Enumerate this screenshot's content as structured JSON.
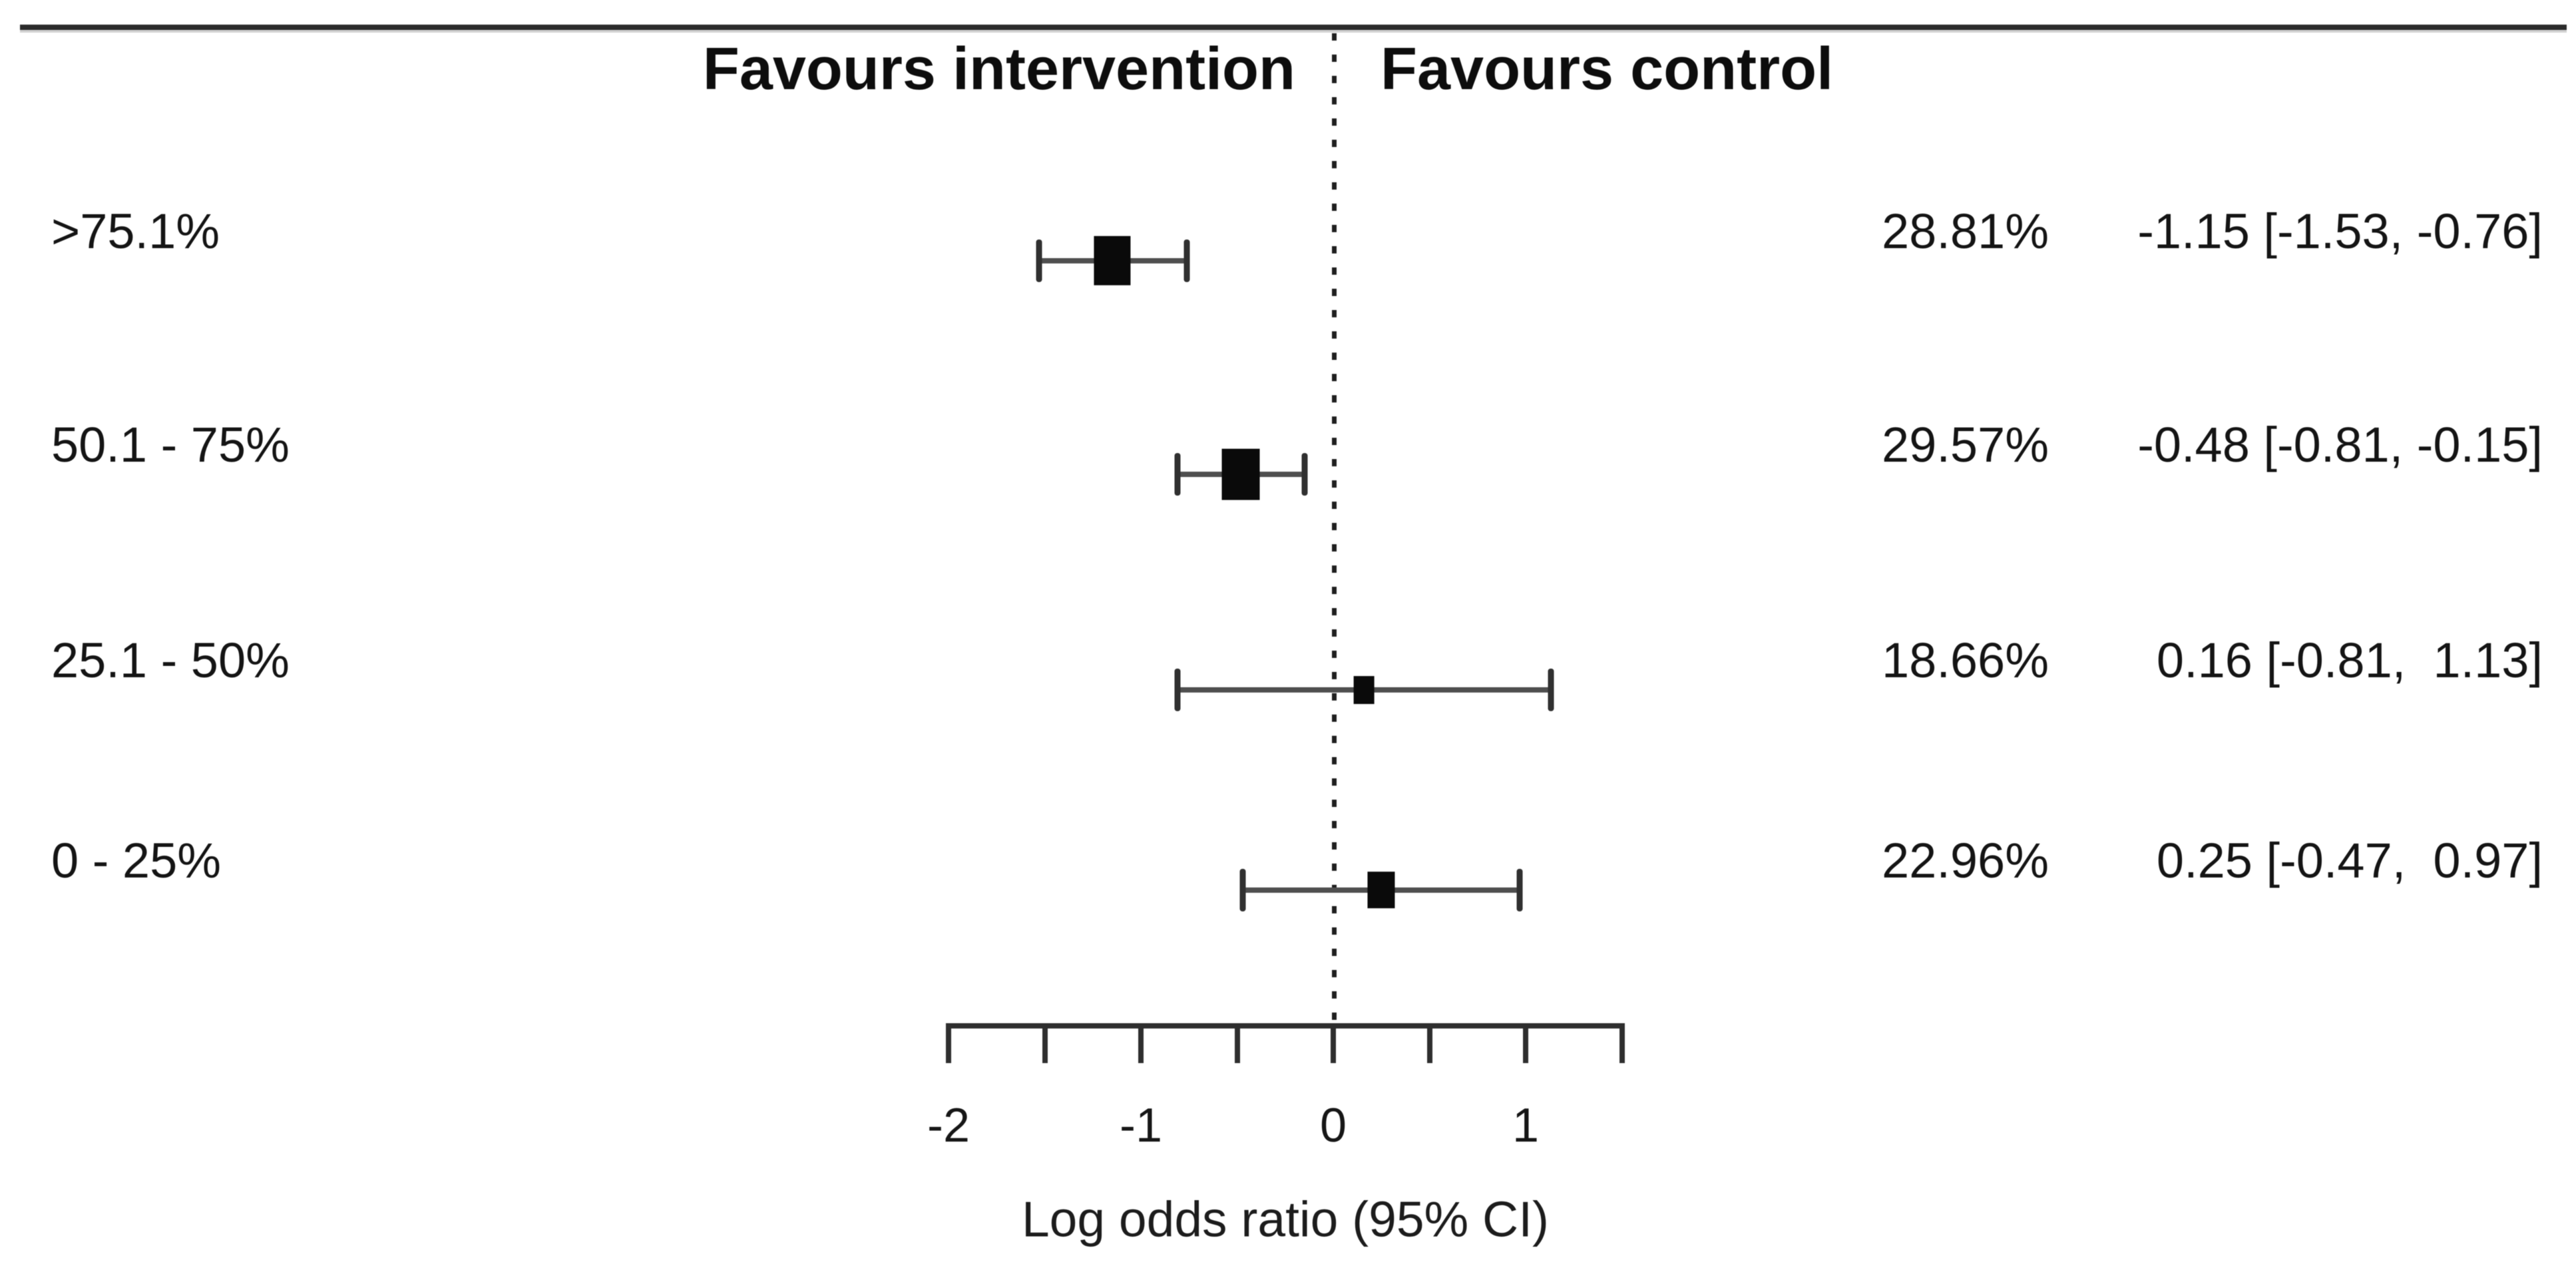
{
  "figure": {
    "background": "#ffffff",
    "rule_color": "#2b2b2b",
    "marker_color": "#0a0a0a",
    "whisker_color": "#4f4f4f"
  },
  "chart_data": {
    "type": "forest",
    "header_left": "Favours intervention",
    "header_right": "Favours control",
    "xlabel": "Log odds ratio (95% CI)",
    "x_axis": {
      "range": [
        -2,
        1.5
      ],
      "minor_tick_step": 0.5,
      "major_tick_values": [
        -2,
        -1,
        0,
        1
      ],
      "major_tick_labels": [
        "-2",
        "-1",
        "0",
        "1"
      ],
      "reference_line": 0
    },
    "rows": [
      {
        "label": ">75.1%",
        "weight": "28.81%",
        "weight_pct": 28.81,
        "estimate": -1.15,
        "ci_lower": -1.53,
        "ci_upper": -0.76,
        "estimate_text": "-1.15 [-1.53, -0.76]"
      },
      {
        "label": "50.1 - 75%",
        "weight": "29.57%",
        "weight_pct": 29.57,
        "estimate": -0.48,
        "ci_lower": -0.81,
        "ci_upper": -0.15,
        "estimate_text": "-0.48 [-0.81, -0.15]"
      },
      {
        "label": "25.1 - 50%",
        "weight": "18.66%",
        "weight_pct": 18.66,
        "estimate": 0.16,
        "ci_lower": -0.81,
        "ci_upper": 1.13,
        "estimate_text": "0.16 [-0.81,  1.13]"
      },
      {
        "label": "0 - 25%",
        "weight": "22.96%",
        "weight_pct": 22.96,
        "estimate": 0.25,
        "ci_lower": -0.47,
        "ci_upper": 0.97,
        "estimate_text": "0.25 [-0.47,  0.97]"
      }
    ]
  }
}
